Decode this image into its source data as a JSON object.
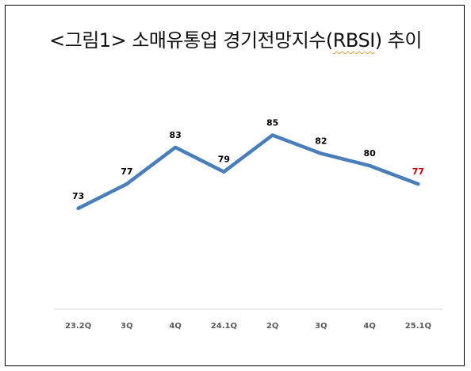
{
  "title": {
    "prefix": "<그림1> 소매유통업 경기전망지수(",
    "term": "RBSI",
    "suffix": ") 추이"
  },
  "colors": {
    "line": "#4a7ebb",
    "label": "#000000",
    "highlight_label": "#c00000",
    "tick": "#595959",
    "axis": "#d9d9d9"
  },
  "chart_data": {
    "type": "line",
    "title": "<그림1> 소매유통업 경기전망지수(RBSI) 추이",
    "categories": [
      "23.2Q",
      "3Q",
      "4Q",
      "24.1Q",
      "2Q",
      "3Q",
      "4Q",
      "25.1Q"
    ],
    "values": [
      73,
      77,
      83,
      79,
      85,
      82,
      80,
      77
    ],
    "data_labels": [
      "73",
      "77",
      "83",
      "79",
      "85",
      "82",
      "80",
      "77"
    ],
    "highlight_index": 7,
    "xlabel": "",
    "ylabel": "",
    "ylim": [
      50,
      100
    ],
    "grid": false,
    "legend": "none"
  }
}
